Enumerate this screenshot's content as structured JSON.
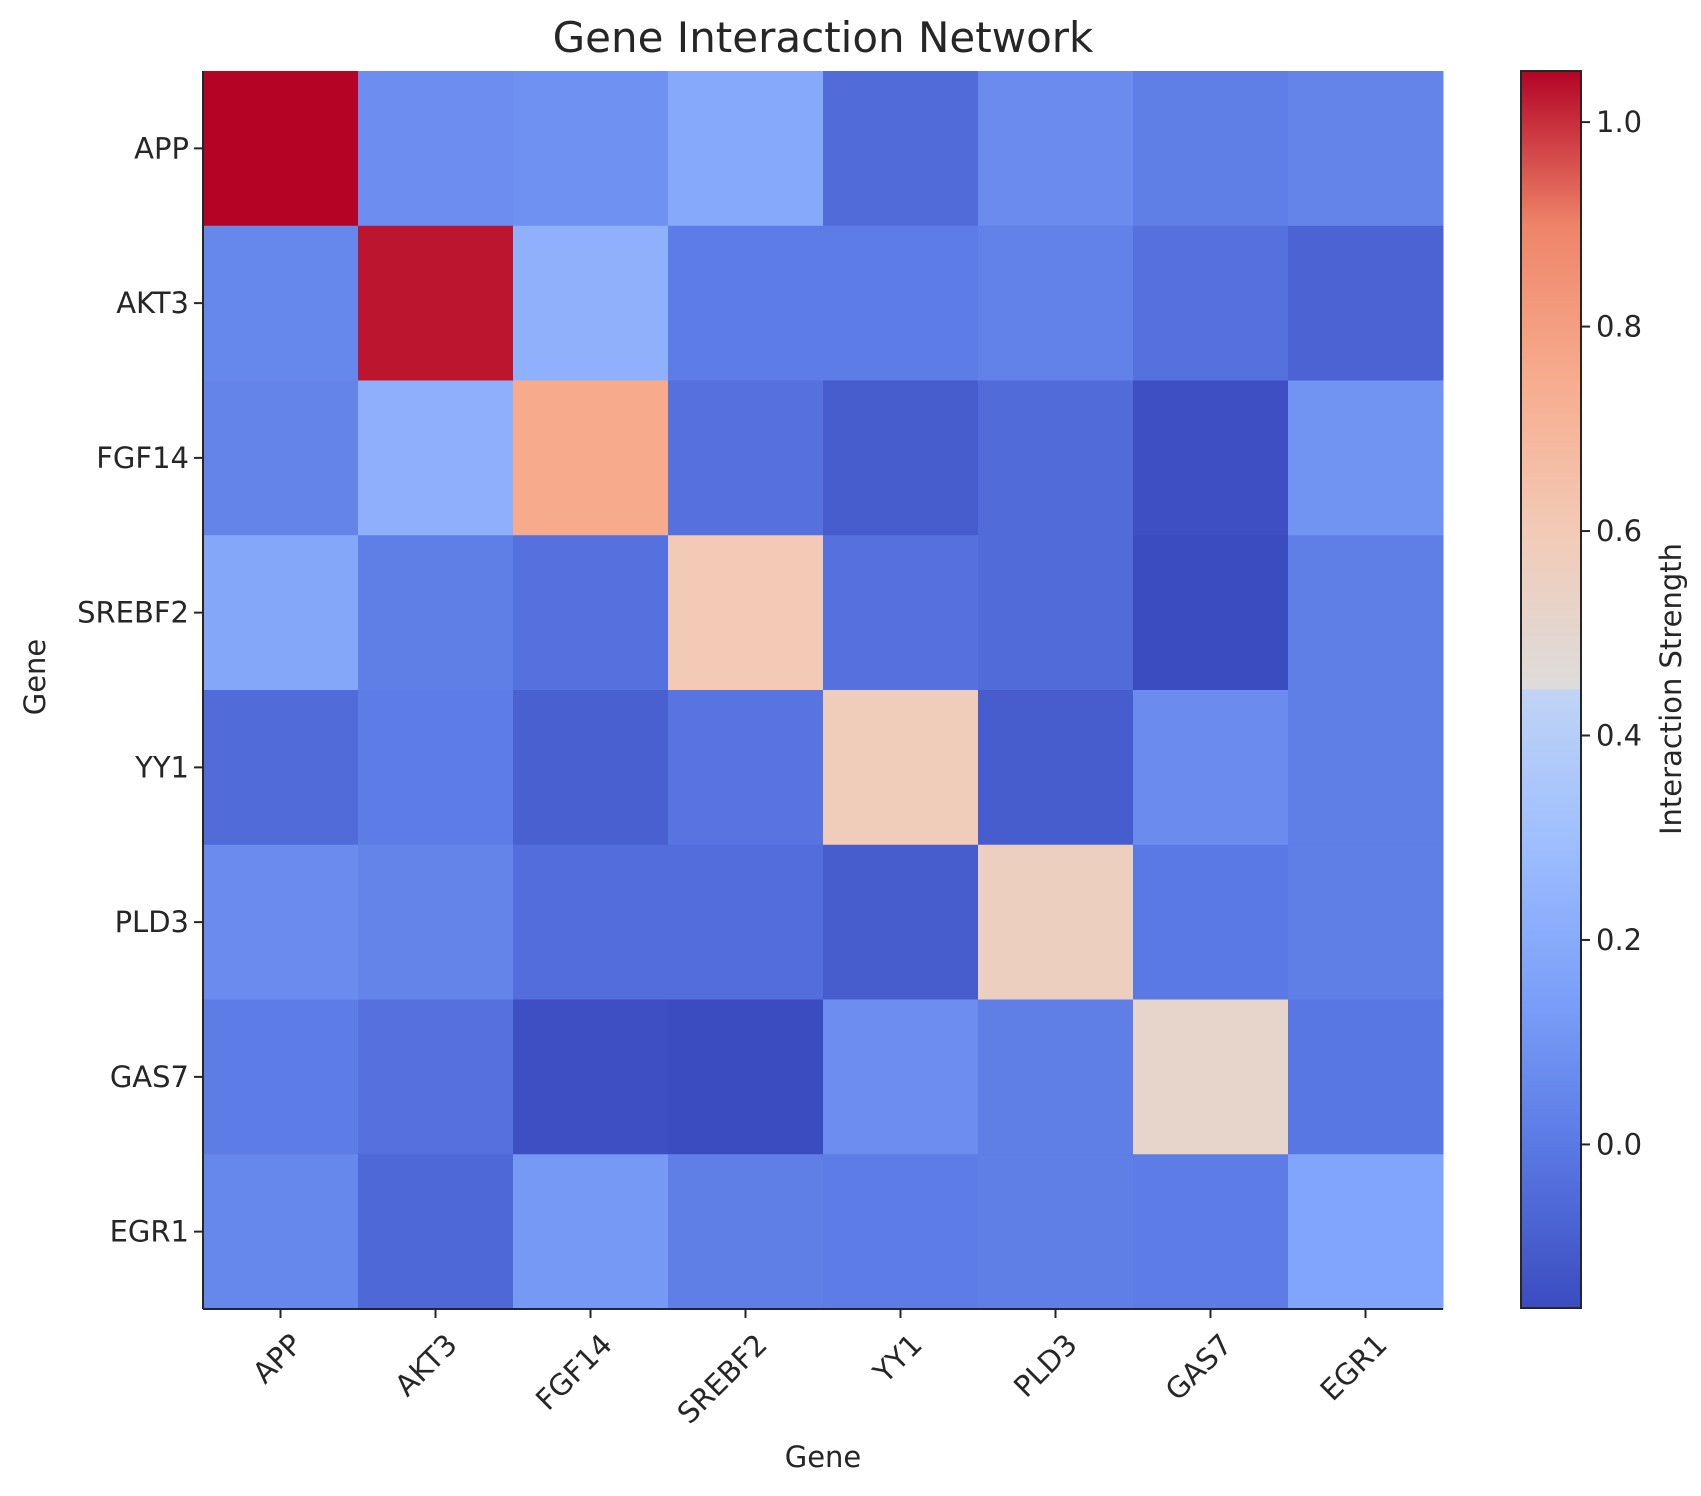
{
  "chart_data": {
    "type": "heatmap",
    "title": "Gene Interaction Network",
    "xlabel": "Gene",
    "ylabel": "Gene",
    "x_categories": [
      "APP",
      "AKT3",
      "FGF14",
      "SREBF2",
      "YY1",
      "PLD3",
      "GAS7",
      "EGR1"
    ],
    "y_categories": [
      "APP",
      "AKT3",
      "FGF14",
      "SREBF2",
      "YY1",
      "PLD3",
      "GAS7",
      "EGR1"
    ],
    "values": [
      [
        1.05,
        0.08,
        0.09,
        0.19,
        -0.05,
        0.07,
        0.02,
        0.04
      ],
      [
        0.05,
        1.03,
        0.23,
        0.01,
        0.01,
        0.03,
        -0.03,
        -0.08
      ],
      [
        0.04,
        0.22,
        0.75,
        -0.03,
        -0.1,
        -0.05,
        -0.15,
        0.1
      ],
      [
        0.18,
        0.02,
        -0.03,
        0.6,
        -0.03,
        -0.05,
        -0.16,
        0.02
      ],
      [
        -0.05,
        0.01,
        -0.09,
        -0.02,
        0.58,
        -0.1,
        0.07,
        0.02
      ],
      [
        0.07,
        0.04,
        -0.04,
        -0.04,
        -0.1,
        0.56,
        0.0,
        0.02
      ],
      [
        0.01,
        -0.03,
        -0.15,
        -0.16,
        0.08,
        0.02,
        0.52,
        -0.01
      ],
      [
        0.05,
        -0.06,
        0.12,
        0.02,
        0.01,
        0.02,
        0.01,
        0.17
      ]
    ],
    "colorbar": {
      "label": "Interaction Strength",
      "vmin": -0.16,
      "vmax": 1.05,
      "ticks": [
        0.0,
        0.2,
        0.4,
        0.6,
        0.8,
        1.0
      ],
      "tick_labels": [
        "0.0",
        "0.2",
        "0.4",
        "0.6",
        "0.8",
        "1.0"
      ]
    },
    "colormap": "coolwarm",
    "grid": false
  }
}
